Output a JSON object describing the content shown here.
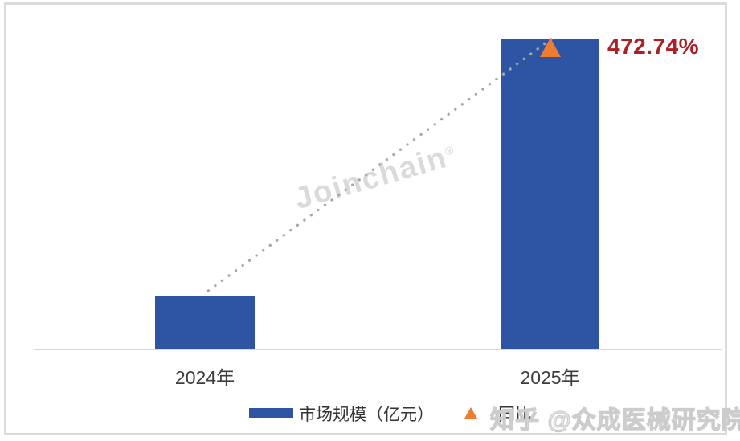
{
  "colors": {
    "bar_blue": "#2e55a4",
    "marker_orange": "#ee7d31",
    "growth_red": "#ac1f24",
    "axis_gray": "#d9d9d9",
    "dot_gray": "#a6a6a6",
    "label_dark": "#3d3d3d",
    "watermark_gray": "#dadada"
  },
  "chart_data": {
    "type": "bar",
    "categories": [
      "2024年",
      "2025年"
    ],
    "series": [
      {
        "name": "市场规模（亿元）",
        "color": "#2e55a4",
        "values_relative": [
          1,
          5.7274
        ],
        "note_values_unlabeled": true
      }
    ],
    "growth_annotation": {
      "label": "472.74%",
      "applies_to": "2025年",
      "marker": "orange-triangle",
      "connector": "gray-dotted-line-from-2024-bar-top-to-2025-bar-top",
      "label_color": "#ac1f24"
    },
    "legend": [
      {
        "label": "市场规模（亿元）",
        "swatch": "blue-rect"
      },
      {
        "label": "同比",
        "swatch": "orange-triangle"
      }
    ],
    "title": "",
    "xlabel": "",
    "ylabel": "",
    "y_axis_visible": false,
    "gridlines": false,
    "legend_position": "bottom-center"
  },
  "labels": {
    "growth_value": "472.74%",
    "x_2024": "2024年",
    "x_2025": "2025年",
    "legend_market": "市场规模（亿元）",
    "legend_yoy": "同比"
  },
  "watermarks": {
    "center_text": "Joinchain",
    "center_reg": "®",
    "bottom_right": "知乎 @众成医械研究院"
  }
}
